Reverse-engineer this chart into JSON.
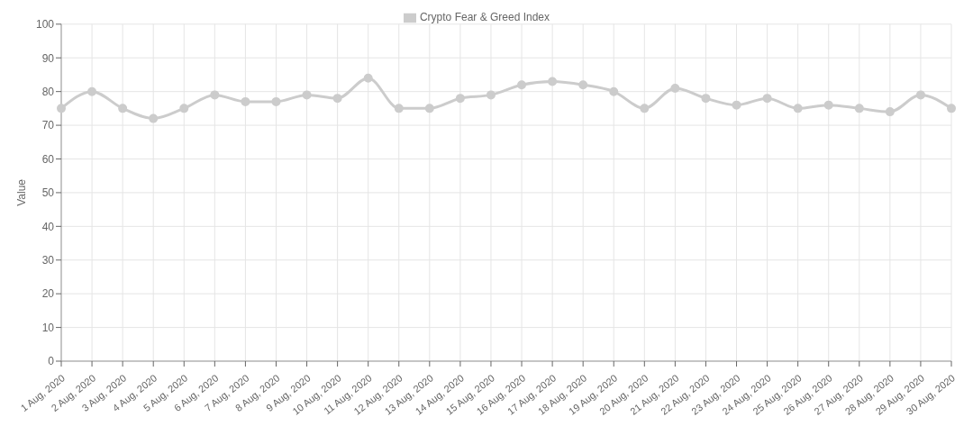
{
  "chart_data": {
    "type": "line",
    "ylabel": "Value",
    "categories": [
      "1 Aug, 2020",
      "2 Aug, 2020",
      "3 Aug, 2020",
      "4 Aug, 2020",
      "5 Aug, 2020",
      "6 Aug, 2020",
      "7 Aug, 2020",
      "8 Aug, 2020",
      "9 Aug, 2020",
      "10 Aug, 2020",
      "11 Aug, 2020",
      "12 Aug, 2020",
      "13 Aug, 2020",
      "14 Aug, 2020",
      "15 Aug, 2020",
      "16 Aug, 2020",
      "17 Aug, 2020",
      "18 Aug, 2020",
      "19 Aug, 2020",
      "20 Aug, 2020",
      "21 Aug, 2020",
      "22 Aug, 2020",
      "23 Aug, 2020",
      "24 Aug, 2020",
      "25 Aug, 2020",
      "26 Aug, 2020",
      "27 Aug, 2020",
      "28 Aug, 2020",
      "29 Aug, 2020",
      "30 Aug, 2020"
    ],
    "series": [
      {
        "name": "Crypto Fear & Greed Index",
        "color": "#cccccc",
        "values": [
          75,
          80,
          75,
          72,
          75,
          79,
          77,
          77,
          79,
          78,
          84,
          75,
          75,
          78,
          79,
          82,
          83,
          82,
          80,
          75,
          81,
          78,
          76,
          78,
          75,
          76,
          75,
          74,
          79,
          75
        ]
      }
    ],
    "ylim": [
      0,
      100
    ],
    "yticks": [
      0,
      10,
      20,
      30,
      40,
      50,
      60,
      70,
      80,
      90,
      100
    ],
    "grid": true,
    "legend": "top",
    "marker": "circle",
    "line_style": "solid"
  }
}
